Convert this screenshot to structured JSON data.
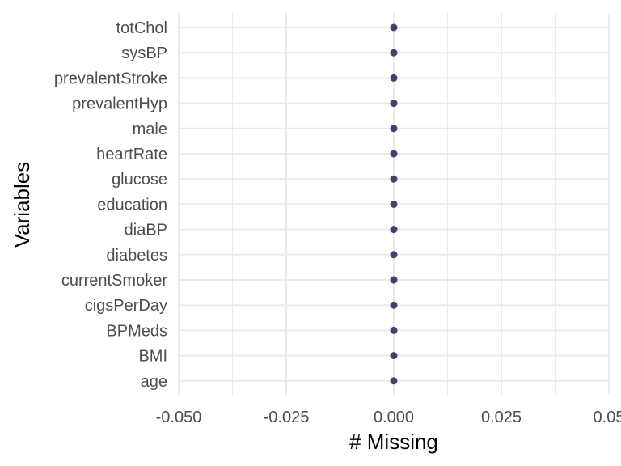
{
  "chart_data": {
    "type": "scatter",
    "xlabel": "# Missing",
    "ylabel": "Variables",
    "xlim": [
      -0.05,
      0.05
    ],
    "x_ticks": [
      "-0.050",
      "-0.025",
      "0.000",
      "0.025",
      "0.05"
    ],
    "x_tick_values": [
      -0.05,
      -0.025,
      0.0,
      0.025,
      0.05
    ],
    "categories": [
      "totChol",
      "sysBP",
      "prevalentStroke",
      "prevalentHyp",
      "male",
      "heartRate",
      "glucose",
      "education",
      "diaBP",
      "diabetes",
      "currentSmoker",
      "cigsPerDay",
      "BPMeds",
      "BMI",
      "age"
    ],
    "values": [
      0,
      0,
      0,
      0,
      0,
      0,
      0,
      0,
      0,
      0,
      0,
      0,
      0,
      0,
      0
    ],
    "grid": true,
    "legend": "none",
    "point_color": "#3f4170"
  }
}
